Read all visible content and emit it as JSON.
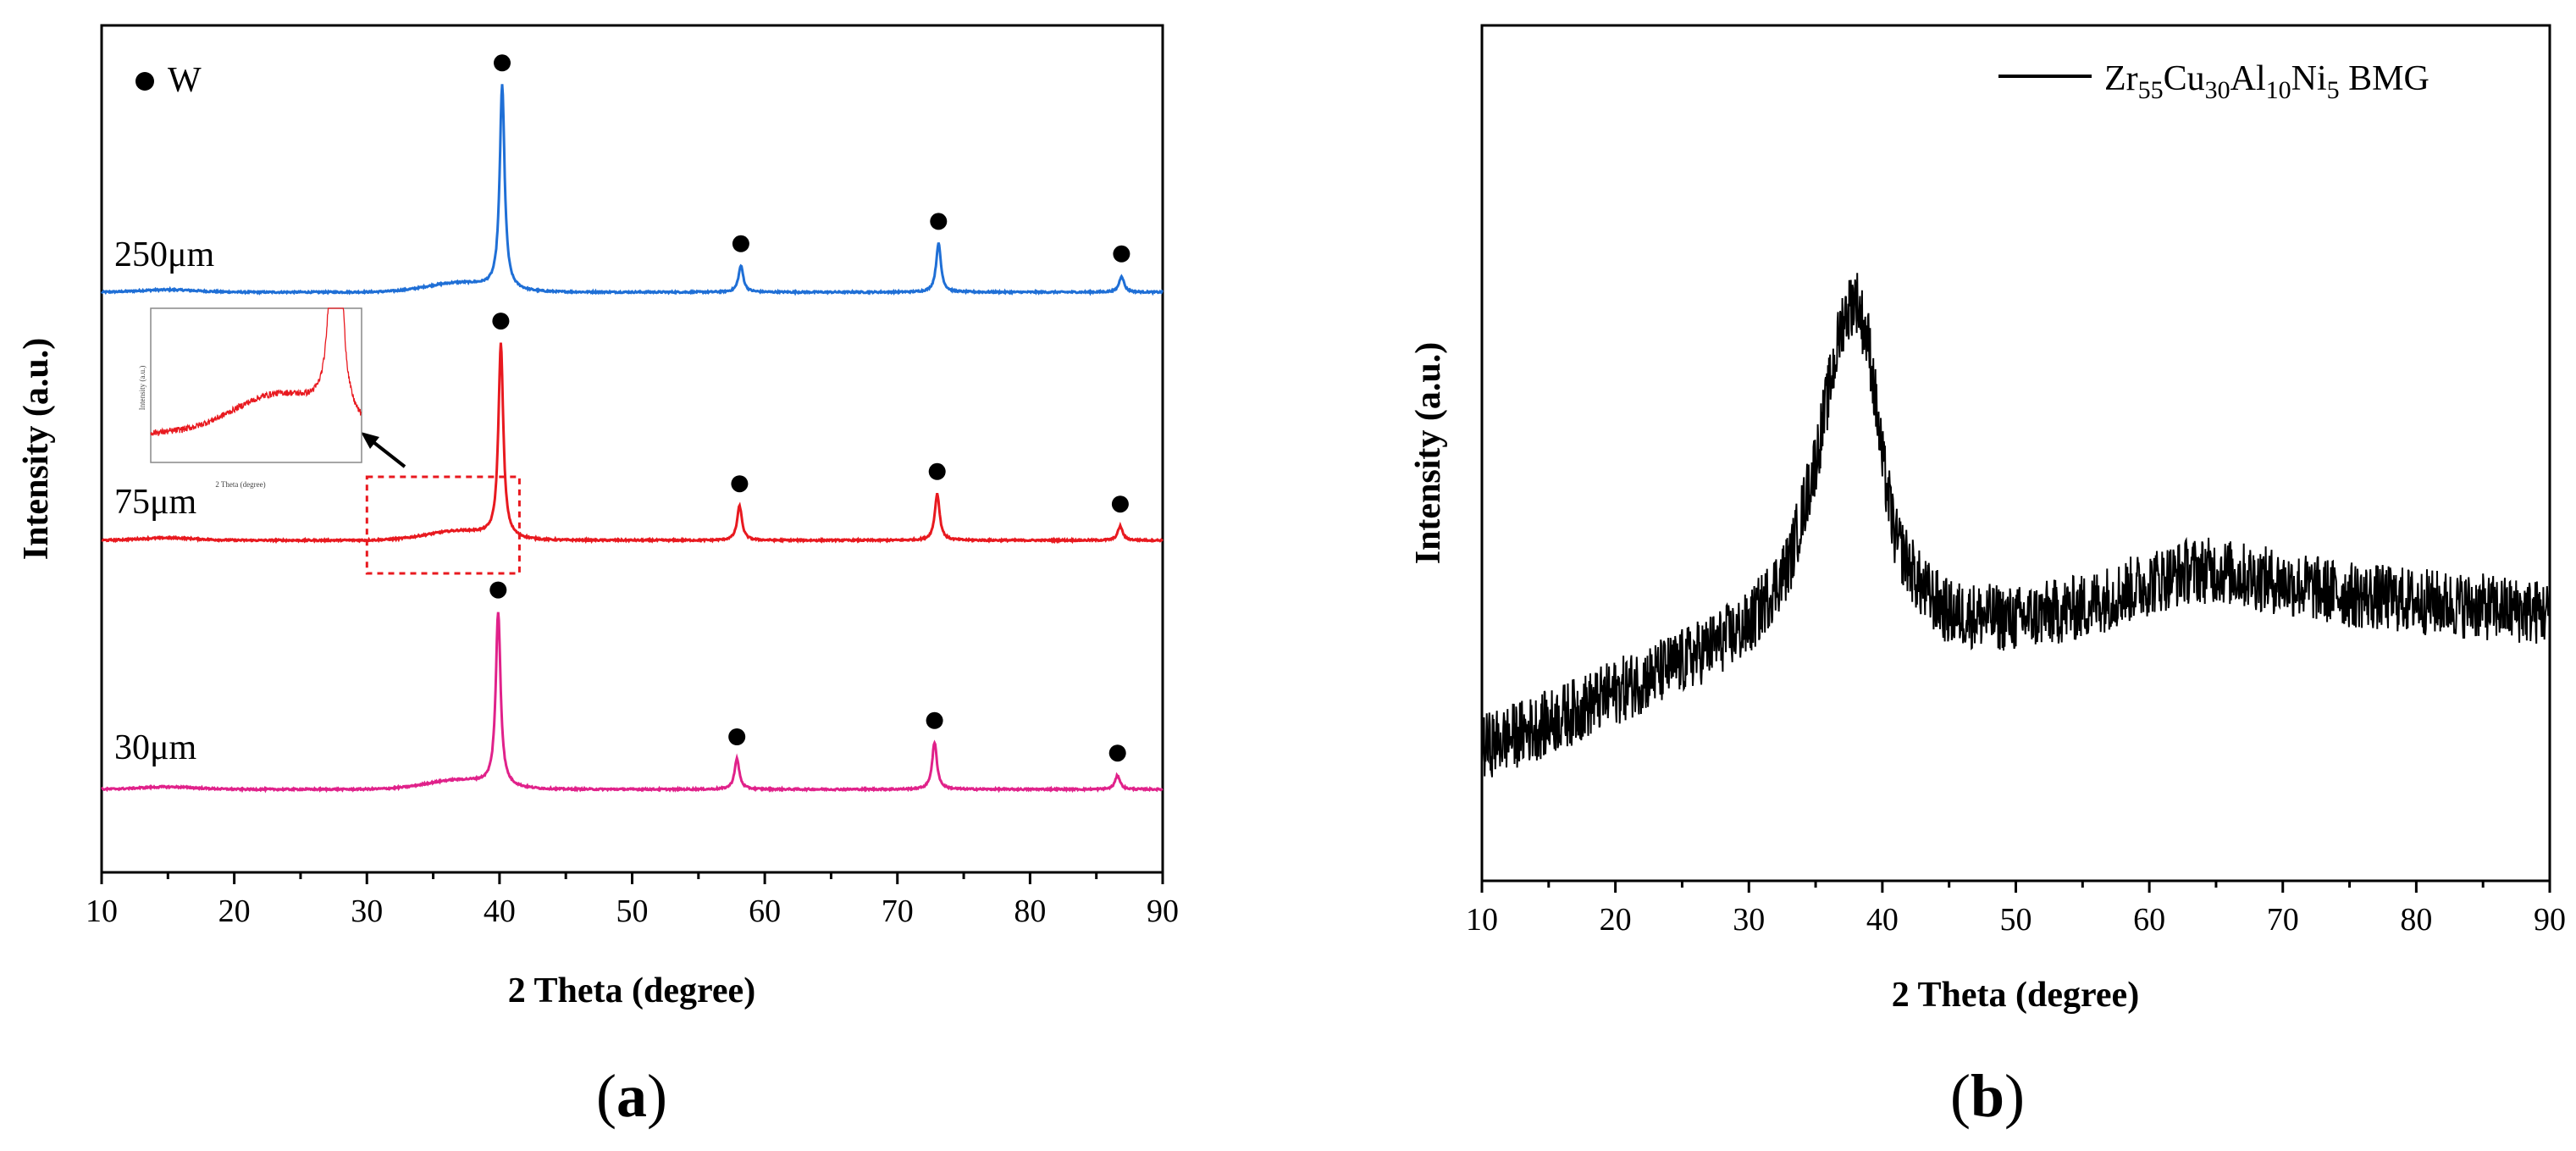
{
  "chart_data": [
    {
      "type": "line",
      "panel_label": {
        "open": "(",
        "letter": "a",
        "close": ")"
      },
      "xlabel": "2 Theta (degree)",
      "ylabel": "Intensity (a.u.)",
      "xlim": [
        10,
        90
      ],
      "xticks": [
        10,
        20,
        30,
        40,
        50,
        60,
        70,
        80,
        90
      ],
      "legend": {
        "marker": "●",
        "label": "W",
        "placement": "top-left"
      },
      "peak_positions": [
        40.2,
        58.2,
        73.1,
        86.9
      ],
      "series": [
        {
          "name": "250μm",
          "color": "#1f6fd6",
          "peaks": [
            40.2,
            58.2,
            73.1,
            86.9
          ],
          "peak_heights": [
            1.0,
            0.13,
            0.24,
            0.08
          ],
          "offset": 2
        },
        {
          "name": "75μm",
          "color": "#e8191f",
          "peaks": [
            40.1,
            58.1,
            73.0,
            86.8
          ],
          "peak_heights": [
            0.95,
            0.17,
            0.23,
            0.07
          ],
          "offset": 1
        },
        {
          "name": "30μm",
          "color": "#e0218a",
          "peaks": [
            39.9,
            57.9,
            72.8,
            86.6
          ],
          "peak_heights": [
            0.85,
            0.15,
            0.23,
            0.07
          ],
          "offset": 0
        }
      ],
      "annotation": {
        "type": "zoom-box",
        "x_range": [
          30,
          41.5
        ],
        "inset": {
          "xlabel": "2 Theta (degree)",
          "ylabel": "Intensity (a.u.)",
          "source_series": "75μm"
        }
      }
    },
    {
      "type": "line",
      "panel_label": {
        "open": "(",
        "letter": "b",
        "close": ")"
      },
      "xlabel": "2 Theta (degree)",
      "ylabel": "Intensity (a.u.)",
      "xlim": [
        10,
        90
      ],
      "xticks": [
        10,
        20,
        30,
        40,
        50,
        60,
        70,
        80,
        90
      ],
      "legend": {
        "placement": "top-right",
        "parts": [
          "Zr",
          "55",
          "Cu",
          "30",
          "Al",
          "10",
          "Ni",
          "5",
          " BMG"
        ]
      },
      "series": [
        {
          "name": "Zr55Cu30Al10Ni5 BMG",
          "color": "#000000",
          "x": [
            10,
            15,
            20,
            25,
            30,
            33,
            35,
            37,
            38,
            39,
            40,
            41,
            43,
            45,
            50,
            55,
            60,
            63,
            65,
            70,
            75,
            80,
            85,
            90
          ],
          "y": [
            0.08,
            0.12,
            0.17,
            0.22,
            0.28,
            0.38,
            0.55,
            0.78,
            0.82,
            0.74,
            0.55,
            0.42,
            0.34,
            0.3,
            0.29,
            0.31,
            0.35,
            0.37,
            0.37,
            0.35,
            0.33,
            0.32,
            0.31,
            0.3
          ]
        }
      ]
    }
  ]
}
